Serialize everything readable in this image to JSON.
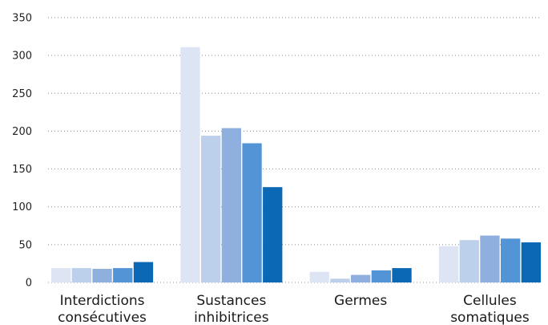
{
  "chart_data": {
    "type": "bar",
    "title": "",
    "xlabel": "",
    "ylabel": "",
    "ylim": [
      0,
      350
    ],
    "yticks": [
      0,
      50,
      100,
      150,
      200,
      250,
      300,
      350
    ],
    "grid": true,
    "legend": "none",
    "categories": [
      [
        "Interdictions",
        "consécutives"
      ],
      [
        "Sustances",
        "inhibitrices"
      ],
      [
        "Germes"
      ],
      [
        "Cellules",
        "somatiques"
      ]
    ],
    "series": [
      {
        "color": "#dde5f5",
        "values": [
          19,
          311,
          14,
          48
        ]
      },
      {
        "color": "#bcd0ec",
        "values": [
          19,
          194,
          5,
          56
        ]
      },
      {
        "color": "#8fb0de",
        "values": [
          18,
          204,
          10,
          62
        ]
      },
      {
        "color": "#5294d6",
        "values": [
          19,
          184,
          16,
          58
        ]
      },
      {
        "color": "#0a68b4",
        "values": [
          27,
          126,
          19,
          53
        ]
      }
    ]
  }
}
